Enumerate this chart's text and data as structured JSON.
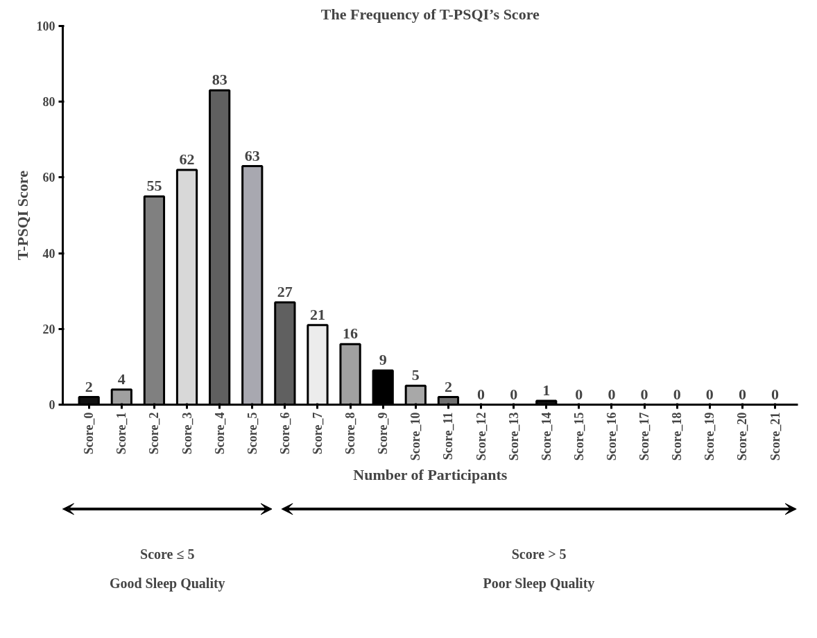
{
  "chart_data": {
    "type": "bar",
    "title": "The Frequency of T-PSQI’s Score",
    "xlabel": "Number of Participants",
    "ylabel": "T-PSQI Score",
    "categories": [
      "Score_0",
      "Score_1",
      "Score_2",
      "Score_3",
      "Score_4",
      "Score_5",
      "Score_6",
      "Score_7",
      "Score_8",
      "Score_9",
      "Score_10",
      "Score_11",
      "Score_12",
      "Score_13",
      "Score_14",
      "Score_15",
      "Score_16",
      "Score_17",
      "Score_18",
      "Score_19",
      "Score_20",
      "Score_21"
    ],
    "values": [
      2,
      4,
      55,
      62,
      83,
      63,
      27,
      21,
      16,
      9,
      5,
      2,
      0,
      0,
      1,
      0,
      0,
      0,
      0,
      0,
      0,
      0
    ],
    "colors": [
      "#111111",
      "#a0a0a0",
      "#808080",
      "#d8d8d8",
      "#606060",
      "#a8a8b0",
      "#606060",
      "#ececec",
      "#a0a0a0",
      "#000000",
      "#a8a8a8",
      "#707070",
      "#000000",
      "#000000",
      "#111111",
      "#000000",
      "#000000",
      "#000000",
      "#000000",
      "#000000",
      "#000000",
      "#000000"
    ],
    "data_labels": true,
    "ylim": [
      0,
      100
    ],
    "yticks": [
      0,
      20,
      40,
      60,
      80,
      100
    ],
    "grid": false,
    "annotations": [
      "Score ≤ 5\nGood Sleep Quality",
      "Score > 5\nPoor Sleep Quality"
    ]
  }
}
